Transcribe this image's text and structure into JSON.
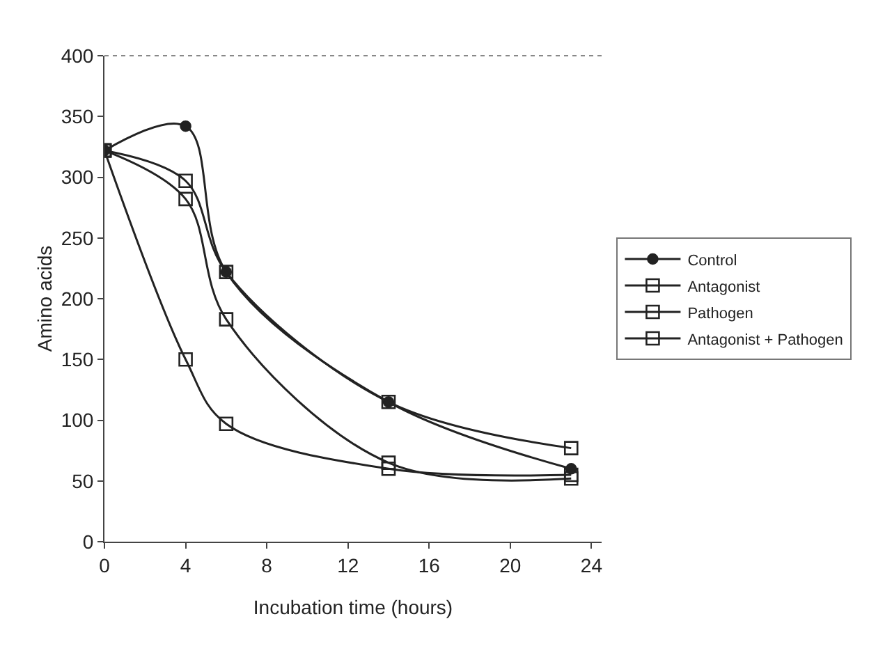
{
  "chart_data": {
    "type": "line",
    "xlabel": "Incubation time (hours)",
    "ylabel": "Amino acids",
    "xlim": [
      0,
      24.5
    ],
    "xticks": [
      0,
      4,
      8,
      12,
      16,
      20,
      24
    ],
    "ylim": [
      0,
      400
    ],
    "yticks": [
      0,
      50,
      100,
      150,
      200,
      250,
      300,
      350,
      400
    ],
    "grid": false,
    "legend": "right",
    "line_style": "solid",
    "series": [
      {
        "name": "Control",
        "color": "#222222",
        "marker": "circle",
        "x": [
          0,
          4,
          6,
          14,
          23
        ],
        "values": [
          322,
          342,
          222,
          115,
          60
        ]
      },
      {
        "name": "Antagonist",
        "color": "#222222",
        "marker": "square",
        "x": [
          0,
          4,
          6,
          14,
          23
        ],
        "values": [
          322,
          282,
          183,
          65,
          52
        ]
      },
      {
        "name": "Pathogen",
        "color": "#222222",
        "marker": "square",
        "x": [
          0,
          4,
          6,
          14,
          23
        ],
        "values": [
          322,
          297,
          222,
          115,
          77
        ]
      },
      {
        "name": "Antagonist + Pathogen",
        "color": "#222222",
        "marker": "square",
        "x": [
          0,
          4,
          6,
          14,
          23
        ],
        "values": [
          322,
          150,
          97,
          60,
          55
        ]
      }
    ]
  }
}
